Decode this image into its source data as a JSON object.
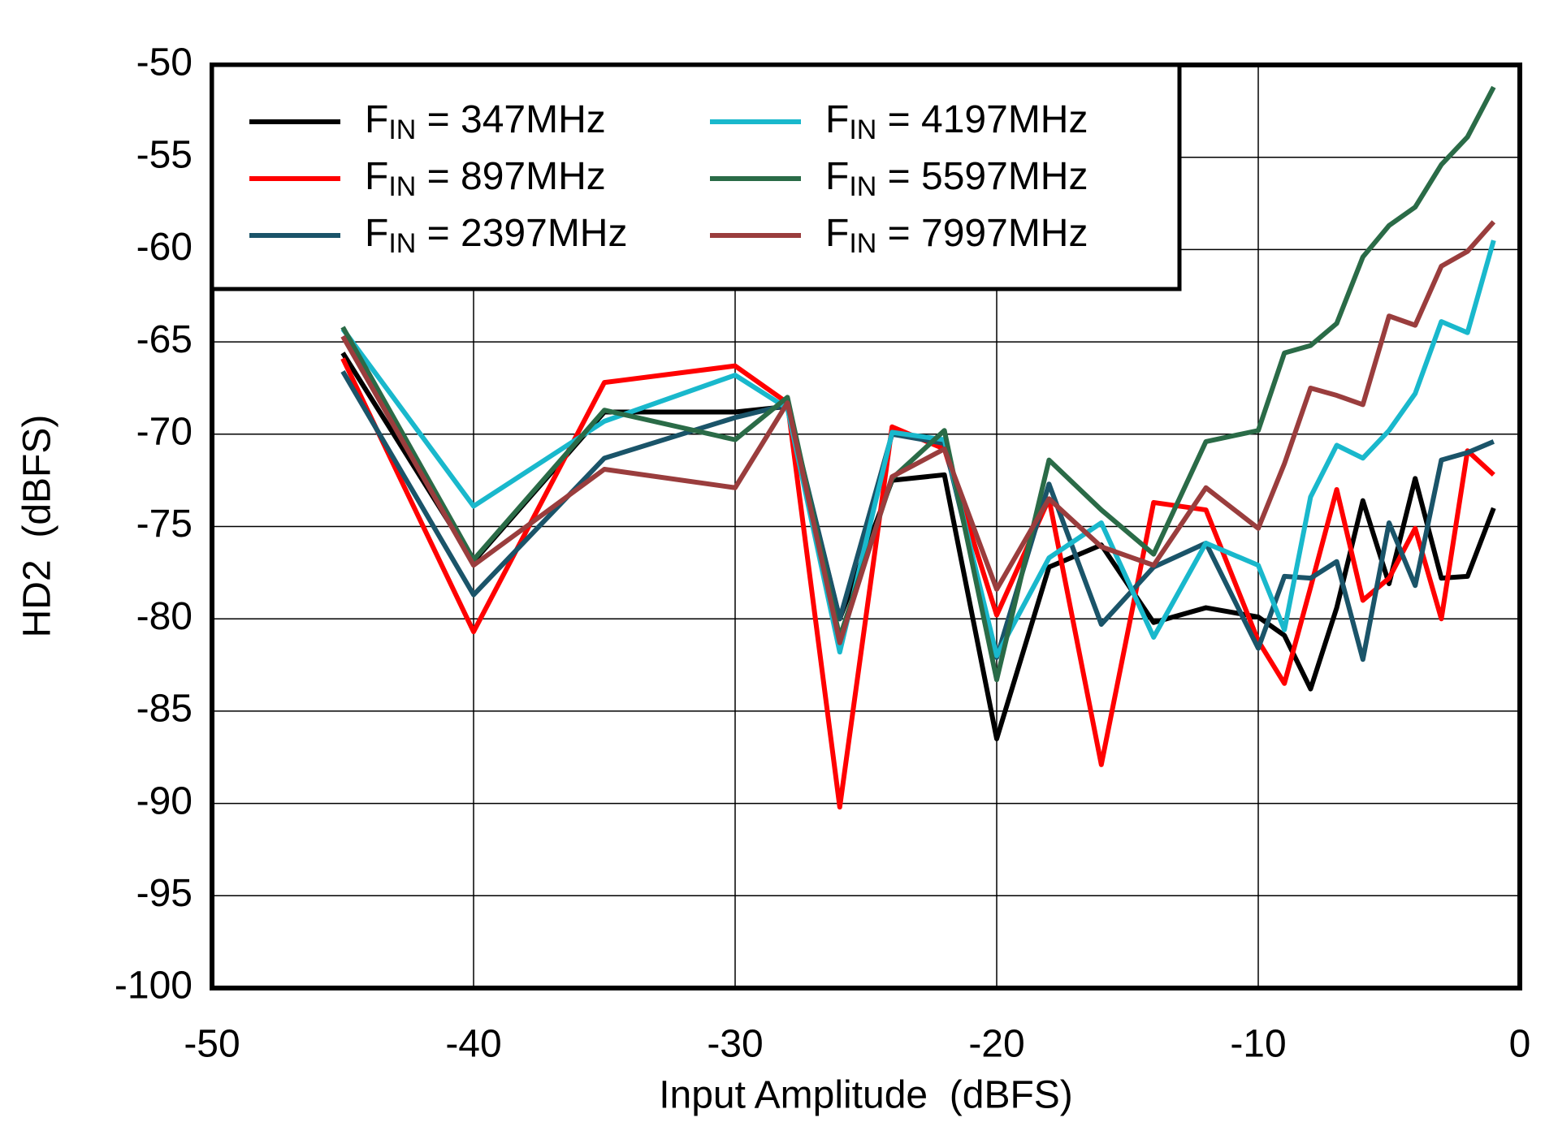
{
  "chart_data": {
    "type": "line",
    "x_label": "Input Amplitude  (dBFS)",
    "y_label": "HD2  (dBFS)",
    "x": [
      -45,
      -40,
      -35,
      -30,
      -28,
      -26,
      -24,
      -22,
      -20,
      -18,
      -16,
      -14,
      -12,
      -10,
      -9,
      -8,
      -7,
      -6,
      -5,
      -4,
      -3,
      -2,
      -1
    ],
    "series": [
      {
        "name": "FIN = 347MHz",
        "color": "#000000",
        "values": [
          -65.6,
          -76.9,
          -68.8,
          -68.8,
          -68.5,
          -80,
          -72.5,
          -72.2,
          -86.5,
          -77.2,
          -76,
          -80.2,
          -79.4,
          -79.9,
          -80.9,
          -83.8,
          -79.4,
          -73.6,
          -78.1,
          -72.4,
          -77.8,
          -77.7,
          -74.0
        ]
      },
      {
        "name": "FIN = 897MHz",
        "color": "#ff0000",
        "values": [
          -65.9,
          -80.7,
          -67.2,
          -66.3,
          -68.3,
          -90.2,
          -69.6,
          -70.8,
          -79.8,
          -73.5,
          -87.9,
          -73.7,
          -74.1,
          -81.2,
          -83.5,
          -78.3,
          -73,
          -79,
          -77.8,
          -75.1,
          -80,
          -70.9,
          -72.2
        ]
      },
      {
        "name": "FIN = 2397MHz",
        "color": "#1a5469",
        "values": [
          -66.6,
          -78.7,
          -71.3,
          -69.1,
          -68.4,
          -80,
          -70,
          -70.5,
          -82.1,
          -72.7,
          -80.3,
          -77.2,
          -75.9,
          -81.6,
          -77.7,
          -77.8,
          -76.9,
          -82.2,
          -74.8,
          -78.2,
          -71.4,
          -71,
          -70.4
        ]
      },
      {
        "name": "FIN = 4197MHz",
        "color": "#19b8cc",
        "values": [
          -64.3,
          -73.9,
          -69.3,
          -66.8,
          -68.6,
          -81.8,
          -69.9,
          -70.3,
          -82,
          -76.7,
          -74.8,
          -81,
          -75.9,
          -77.1,
          -80.6,
          -73.4,
          -70.6,
          -71.3,
          -69.8,
          -67.8,
          -63.9,
          -64.5,
          -59.5
        ]
      },
      {
        "name": "FIN = 5597MHz",
        "color": "#2a6b47",
        "values": [
          -64.2,
          -76.8,
          -68.7,
          -70.3,
          -68,
          -81,
          -72.4,
          -69.8,
          -83.3,
          -71.4,
          -74.1,
          -76.5,
          -70.4,
          -69.8,
          -65.6,
          -65.2,
          -64,
          -60.4,
          -58.7,
          -57.7,
          -55.4,
          -53.9,
          -51.2
        ]
      },
      {
        "name": "FIN = 7997MHz",
        "color": "#9a3d3d",
        "values": [
          -64.7,
          -77.1,
          -71.9,
          -72.9,
          -68.3,
          -81.3,
          -72.3,
          -70.8,
          -78.4,
          -73.5,
          -76.1,
          -77.1,
          -72.9,
          -75.1,
          -71.6,
          -67.5,
          -67.9,
          -68.4,
          -63.6,
          -64.1,
          -60.9,
          -60.1,
          -58.5
        ]
      }
    ],
    "xlim": [
      -50,
      0
    ],
    "xticks": [
      -50,
      -40,
      -30,
      -20,
      -10,
      0
    ],
    "ylim": [
      -100,
      -50
    ],
    "yticks": [
      -100,
      -95,
      -90,
      -85,
      -80,
      -75,
      -70,
      -65,
      -60,
      -55,
      -50
    ],
    "grid": true
  }
}
